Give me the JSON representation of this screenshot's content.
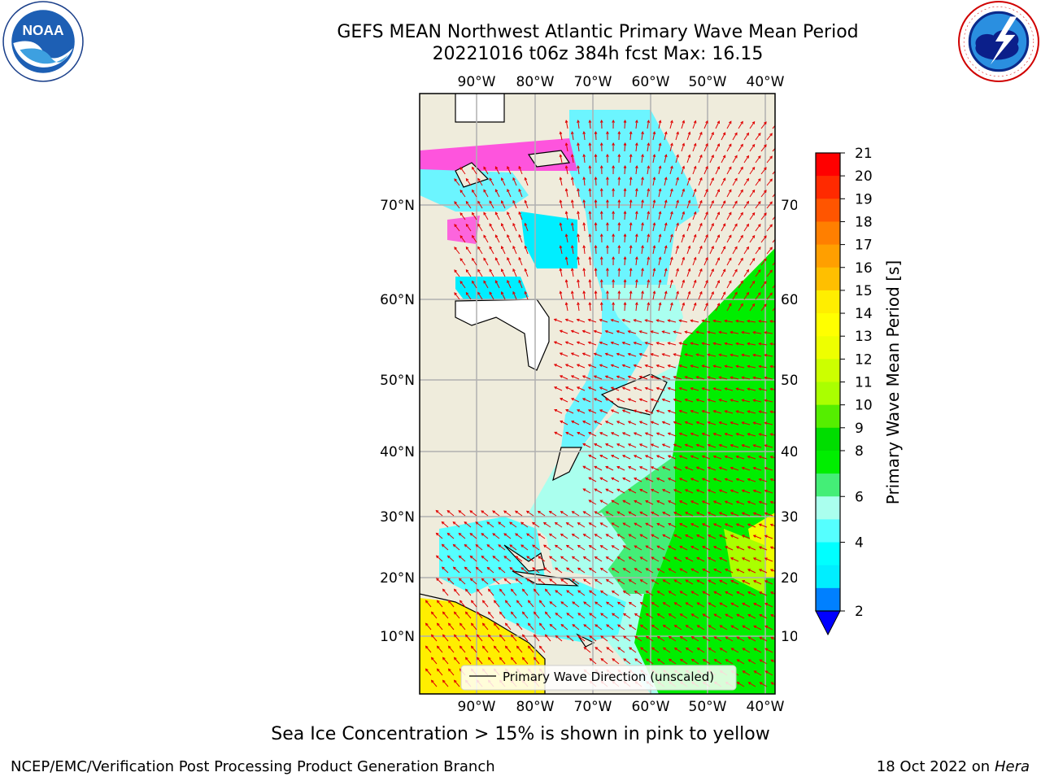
{
  "header": {
    "title_line1": "GEFS MEAN Northwest Atlantic Primary Wave Mean Period",
    "title_line2": "20221016 t06z 384h fcst   Max: 16.15"
  },
  "logos": {
    "left": {
      "icon": "noaa-logo",
      "text": "NOAA"
    },
    "right": {
      "icon": "national-weather-service-logo",
      "ring_text": "NATIONAL WEATHER SERVICE"
    }
  },
  "map": {
    "lon_labels": [
      "90°W",
      "80°W",
      "70°W",
      "60°W",
      "50°W",
      "40°W"
    ],
    "lat_labels": [
      "70°N",
      "60°N",
      "50°N",
      "40°N",
      "30°N",
      "20°N",
      "10°N"
    ],
    "legend_label": "Primary Wave Direction (unscaled)",
    "colors": {
      "ocean_land": "#efecdc",
      "arrow": "#e00000",
      "grid": "#b0b0b0"
    }
  },
  "colorbar": {
    "label": "Primary Wave Mean Period [s]",
    "ticks": [
      "21",
      "20",
      "19",
      "18",
      "17",
      "16",
      "15",
      "14",
      "13",
      "12",
      "11",
      "10",
      "9",
      "8",
      "6",
      "4",
      "2"
    ],
    "colors_top_to_bottom": [
      "#ff0000",
      "#ff2a00",
      "#ff5500",
      "#ff7f00",
      "#ff9f00",
      "#ffbf00",
      "#ffee00",
      "#ffff00",
      "#eeff00",
      "#ccff00",
      "#aaff00",
      "#55ee00",
      "#00dd00",
      "#00ee00",
      "#44ee77",
      "#aaffee",
      "#55ffff",
      "#00ffff",
      "#00eeff",
      "#0080ff"
    ],
    "extend_color": "#0000ff"
  },
  "subtitle": "Sea Ice Concentration > 15% is shown in pink to yellow",
  "footer": {
    "left": "NCEP/EMC/Verification Post Processing Product Generation Branch",
    "right_date": "18 Oct 2022 on ",
    "right_machine": "Hera"
  }
}
